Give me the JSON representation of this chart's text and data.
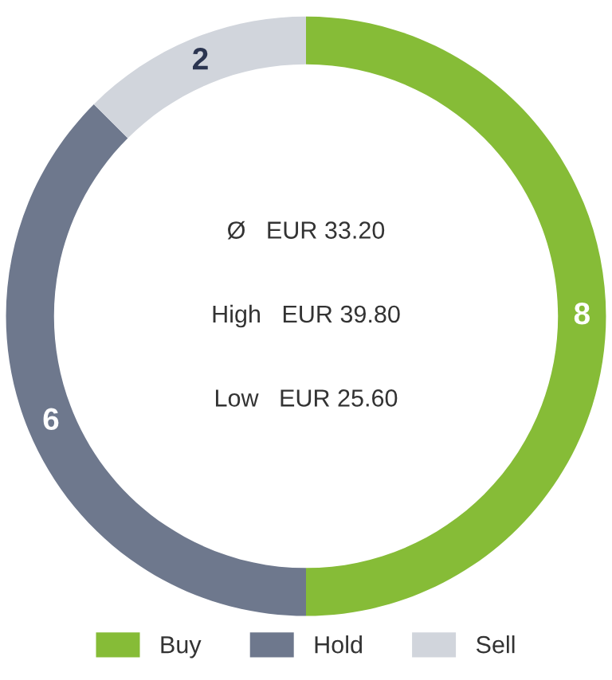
{
  "chart_data": {
    "type": "donut",
    "categories": [
      "Buy",
      "Hold",
      "Sell"
    ],
    "values": [
      8,
      6,
      2
    ],
    "colors": [
      "#86bc37",
      "#6e788d",
      "#d1d5dc"
    ],
    "data_labels": true,
    "legend": "bottom",
    "annotations": [
      "Ø   EUR 33.20",
      "High   EUR 39.80",
      "Low   EUR 25.60"
    ]
  }
}
